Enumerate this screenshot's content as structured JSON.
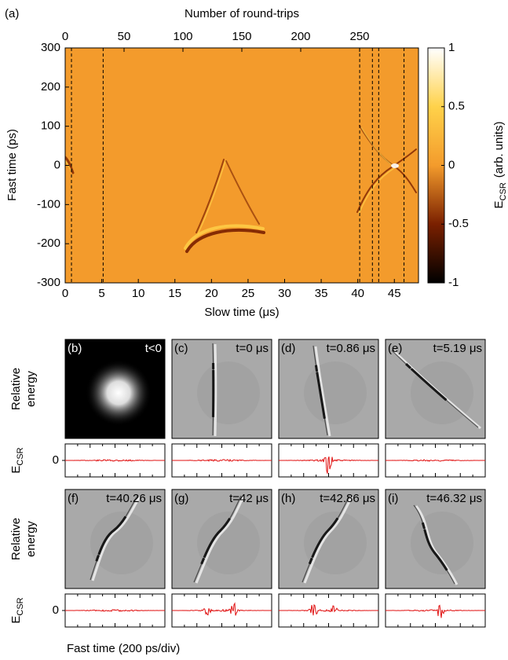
{
  "chart_data": [
    {
      "type": "heatmap",
      "panel_label": "(a)",
      "x2label": "Number of round-trips",
      "xlabel": "Slow time (μs)",
      "ylabel": "Fast time (ps)",
      "xlim": [
        0,
        48.3
      ],
      "xticks": [
        0,
        5,
        10,
        15,
        20,
        25,
        30,
        35,
        40,
        45
      ],
      "x2lim": [
        0,
        300
      ],
      "x2ticks": [
        0,
        50,
        100,
        150,
        200,
        250
      ],
      "ylim": [
        -300,
        300
      ],
      "yticks": [
        -300,
        -200,
        -100,
        0,
        100,
        200,
        300
      ],
      "markers": [
        0.86,
        5.19,
        40.26,
        42,
        42.86,
        46.32
      ],
      "colorbar": {
        "label": "E",
        "label_sub": "CSR",
        "label_rest": "(arb. units)",
        "lim": [
          -1,
          1
        ],
        "ticks": [
          -1,
          -0.5,
          0,
          0.5,
          1
        ],
        "colors": [
          "#000000",
          "#7a2000",
          "#f39b2c",
          "#ffd24a",
          "#ffffff"
        ]
      }
    },
    {
      "type": "panels",
      "ylabel": [
        "Relative",
        "energy"
      ],
      "trace_label": "E",
      "trace_label_sub": "CSR",
      "trace_tick": 0,
      "xlabel": "Fast time (200 ps/div)",
      "panels": [
        {
          "label": "(b)",
          "time": "t<0"
        },
        {
          "label": "(c)",
          "time": "t=0 μs"
        },
        {
          "label": "(d)",
          "time": "t=0.86 μs"
        },
        {
          "label": "(e)",
          "time": "t=5.19 μs"
        },
        {
          "label": "(f)",
          "time": "t=40.26 μs"
        },
        {
          "label": "(g)",
          "time": "t=42 μs"
        },
        {
          "label": "(h)",
          "time": "t=42.86 μs"
        },
        {
          "label": "(i)",
          "time": "t=46.32 μs"
        }
      ]
    }
  ]
}
